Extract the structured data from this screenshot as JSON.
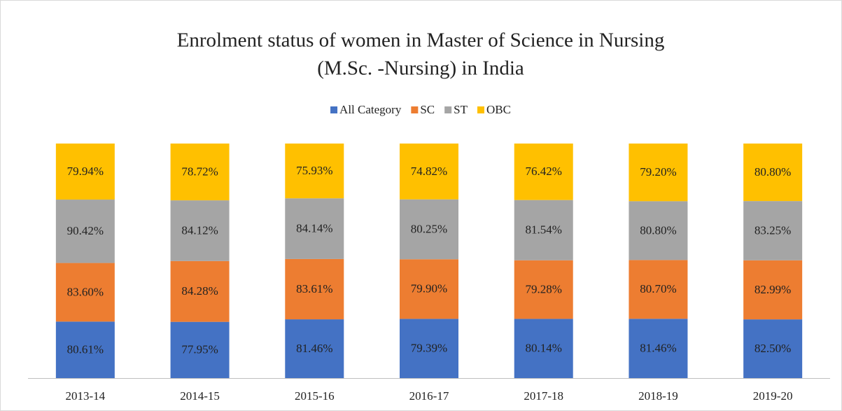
{
  "chart_data": {
    "type": "bar",
    "stacking": "percent",
    "title": [
      "Enrolment status of women in Master of Science in Nursing",
      "(M.Sc. -Nursing) in India"
    ],
    "categories": [
      "2013-14",
      "2014-15",
      "2015-16",
      "2016-17",
      "2017-18",
      "2018-19",
      "2019-20"
    ],
    "series": [
      {
        "name": "All Category",
        "color": "#4472c4",
        "values": [
          80.61,
          77.95,
          81.46,
          79.39,
          80.14,
          81.46,
          82.5
        ],
        "value_labels": [
          "80.61%",
          "77.95%",
          "81.46%",
          "79.39%",
          "80.14%",
          "81.46%",
          "82.50%"
        ]
      },
      {
        "name": "SC",
        "color": "#ed7d31",
        "values": [
          83.6,
          84.28,
          83.61,
          79.9,
          79.28,
          80.7,
          82.99
        ],
        "value_labels": [
          "83.60%",
          "84.28%",
          "83.61%",
          "79.90%",
          "79.28%",
          "80.70%",
          "82.99%"
        ]
      },
      {
        "name": "ST",
        "color": "#a5a5a5",
        "values": [
          90.42,
          84.12,
          84.14,
          80.25,
          81.54,
          80.8,
          83.25
        ],
        "value_labels": [
          "90.42%",
          "84.12%",
          "84.14%",
          "80.25%",
          "81.54%",
          "80.80%",
          "83.25%"
        ]
      },
      {
        "name": "OBC",
        "color": "#ffc000",
        "values": [
          79.94,
          78.72,
          75.93,
          74.82,
          76.42,
          79.2,
          80.8
        ],
        "value_labels": [
          "79.94%",
          "78.72%",
          "75.93%",
          "74.82%",
          "76.42%",
          "79.20%",
          "80.80%"
        ]
      }
    ],
    "legend": "top"
  }
}
